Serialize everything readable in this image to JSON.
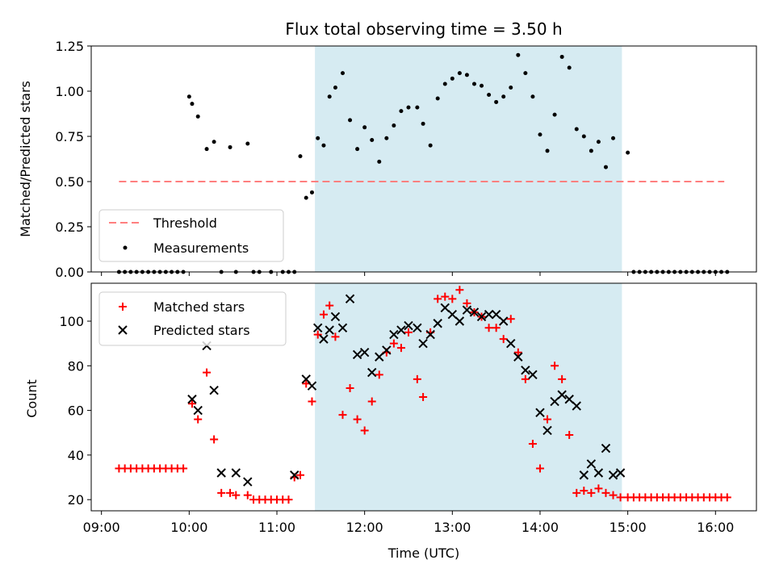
{
  "chart_data": {
    "title": "Flux total observing time = 3.50 h",
    "xlabel": "Time (UTC)",
    "x_ticks": [
      "09:00",
      "10:00",
      "11:00",
      "12:00",
      "13:00",
      "14:00",
      "15:00",
      "16:00"
    ],
    "x_range": [
      "08:53",
      "16:28"
    ],
    "shaded_interval": [
      "11:26",
      "14:56"
    ],
    "shade_color": "#add8e6",
    "panels": [
      {
        "type": "scatter",
        "ylabel": "Matched/Predicted stars",
        "ylim": [
          0,
          1.25
        ],
        "y_ticks": [
          "0.00",
          "0.25",
          "0.50",
          "0.75",
          "1.00",
          "1.25"
        ],
        "legend_position": "lower-left",
        "series": [
          {
            "name": "Threshold",
            "kind": "dashed-line",
            "color": "#ff7f7f",
            "x": [
              "09:12",
              "16:06"
            ],
            "y": [
              0.5,
              0.5
            ]
          },
          {
            "name": "Measurements",
            "kind": "dot",
            "color": "#000000",
            "x": [
              "09:12",
              "09:16",
              "09:20",
              "09:24",
              "09:28",
              "09:32",
              "09:36",
              "09:40",
              "09:44",
              "09:48",
              "09:52",
              "09:56",
              "10:00",
              "10:02",
              "10:06",
              "10:12",
              "10:17",
              "10:22",
              "10:28",
              "10:32",
              "10:40",
              "10:44",
              "10:48",
              "10:56",
              "11:04",
              "11:08",
              "11:12",
              "11:16",
              "11:20",
              "11:24",
              "11:28",
              "11:32",
              "11:36",
              "11:40",
              "11:45",
              "11:50",
              "11:55",
              "12:00",
              "12:05",
              "12:10",
              "12:15",
              "12:20",
              "12:25",
              "12:30",
              "12:36",
              "12:40",
              "12:45",
              "12:50",
              "12:55",
              "13:00",
              "13:05",
              "13:10",
              "13:15",
              "13:20",
              "13:25",
              "13:30",
              "13:35",
              "13:40",
              "13:45",
              "13:50",
              "13:55",
              "14:00",
              "14:05",
              "14:10",
              "14:15",
              "14:20",
              "14:25",
              "14:30",
              "14:35",
              "14:40",
              "14:45",
              "14:50",
              "15:00",
              "15:04",
              "15:08",
              "15:12",
              "15:16",
              "15:20",
              "15:24",
              "15:28",
              "15:32",
              "15:36",
              "15:40",
              "15:44",
              "15:48",
              "15:52",
              "15:56",
              "16:00",
              "16:04",
              "16:08"
            ],
            "y": [
              0,
              0,
              0,
              0,
              0,
              0,
              0,
              0,
              0,
              0,
              0,
              0,
              0.97,
              0.93,
              0.86,
              0.68,
              0.72,
              0,
              0.69,
              0,
              0.71,
              0,
              0,
              0,
              0,
              0,
              0,
              0.64,
              0.41,
              0.44,
              0.74,
              0.7,
              0.97,
              1.02,
              1.1,
              0.84,
              0.68,
              0.8,
              0.73,
              0.61,
              0.74,
              0.81,
              0.89,
              0.91,
              0.91,
              0.82,
              0.7,
              0.96,
              1.04,
              1.07,
              1.1,
              1.09,
              1.04,
              1.03,
              0.98,
              0.94,
              0.97,
              1.02,
              1.2,
              1.1,
              0.97,
              0.76,
              0.67,
              0.87,
              1.19,
              1.13,
              0.79,
              0.75,
              0.67,
              0.72,
              0.58,
              0.74,
              0.66,
              0,
              0,
              0,
              0,
              0,
              0,
              0,
              0,
              0,
              0,
              0,
              0,
              0,
              0,
              0,
              0,
              0
            ]
          }
        ]
      },
      {
        "type": "scatter",
        "ylabel": "Count",
        "ylim": [
          15,
          117
        ],
        "y_ticks": [
          "20",
          "40",
          "60",
          "80",
          "100"
        ],
        "legend_position": "upper-left",
        "series": [
          {
            "name": "Matched stars",
            "kind": "plus",
            "color": "#ff0000",
            "x": [
              "09:12",
              "09:16",
              "09:20",
              "09:24",
              "09:28",
              "09:32",
              "09:36",
              "09:40",
              "09:44",
              "09:48",
              "09:52",
              "09:56",
              "10:02",
              "10:06",
              "10:12",
              "10:17",
              "10:22",
              "10:28",
              "10:32",
              "10:40",
              "10:44",
              "10:48",
              "10:52",
              "10:56",
              "11:00",
              "11:04",
              "11:08",
              "11:12",
              "11:16",
              "11:20",
              "11:24",
              "11:28",
              "11:32",
              "11:36",
              "11:40",
              "11:45",
              "11:50",
              "11:55",
              "12:00",
              "12:05",
              "12:10",
              "12:15",
              "12:20",
              "12:25",
              "12:30",
              "12:36",
              "12:40",
              "12:45",
              "12:50",
              "12:55",
              "13:00",
              "13:05",
              "13:10",
              "13:15",
              "13:20",
              "13:25",
              "13:30",
              "13:35",
              "13:40",
              "13:45",
              "13:50",
              "13:55",
              "14:00",
              "14:05",
              "14:10",
              "14:15",
              "14:20",
              "14:25",
              "14:30",
              "14:35",
              "14:40",
              "14:45",
              "14:50",
              "14:55",
              "15:00",
              "15:04",
              "15:08",
              "15:12",
              "15:16",
              "15:20",
              "15:24",
              "15:28",
              "15:32",
              "15:36",
              "15:40",
              "15:44",
              "15:48",
              "15:52",
              "15:56",
              "16:00",
              "16:04",
              "16:08"
            ],
            "y": [
              34,
              34,
              34,
              34,
              34,
              34,
              34,
              34,
              34,
              34,
              34,
              34,
              63,
              56,
              77,
              47,
              23,
              23,
              22,
              22,
              20,
              20,
              20,
              20,
              20,
              20,
              20,
              30,
              31,
              72,
              64,
              94,
              103,
              107,
              93,
              58,
              70,
              56,
              51,
              64,
              76,
              86,
              90,
              88,
              95,
              74,
              66,
              95,
              110,
              111,
              110,
              114,
              108,
              104,
              102,
              97,
              97,
              92,
              101,
              86,
              74,
              45,
              34,
              56,
              80,
              74,
              49,
              23,
              24,
              23,
              25,
              23,
              22,
              21,
              21,
              21,
              21,
              21,
              21,
              21,
              21,
              21,
              21,
              21,
              21,
              21,
              21,
              21,
              21,
              21,
              21,
              21
            ]
          },
          {
            "name": "Predicted stars",
            "kind": "cross",
            "color": "#000000",
            "x": [
              "10:02",
              "10:06",
              "10:12",
              "10:17",
              "10:22",
              "10:32",
              "10:40",
              "11:12",
              "11:20",
              "11:24",
              "11:28",
              "11:32",
              "11:36",
              "11:40",
              "11:45",
              "11:50",
              "11:55",
              "12:00",
              "12:05",
              "12:10",
              "12:15",
              "12:20",
              "12:25",
              "12:30",
              "12:36",
              "12:40",
              "12:45",
              "12:50",
              "12:55",
              "13:00",
              "13:05",
              "13:10",
              "13:15",
              "13:20",
              "13:25",
              "13:30",
              "13:35",
              "13:40",
              "13:45",
              "13:50",
              "13:55",
              "14:00",
              "14:05",
              "14:10",
              "14:15",
              "14:20",
              "14:25",
              "14:30",
              "14:35",
              "14:40",
              "14:45",
              "14:50",
              "14:55"
            ],
            "y": [
              65,
              60,
              89,
              69,
              32,
              32,
              28,
              31,
              74,
              71,
              97,
              92,
              96,
              102,
              97,
              110,
              85,
              86,
              77,
              84,
              87,
              94,
              96,
              98,
              97,
              90,
              94,
              99,
              106,
              103,
              100,
              105,
              104,
              102,
              103,
              103,
              100,
              90,
              84,
              78,
              76,
              59,
              51,
              64,
              67,
              65,
              62,
              31,
              36,
              32,
              43,
              31,
              32
            ]
          }
        ]
      }
    ]
  }
}
